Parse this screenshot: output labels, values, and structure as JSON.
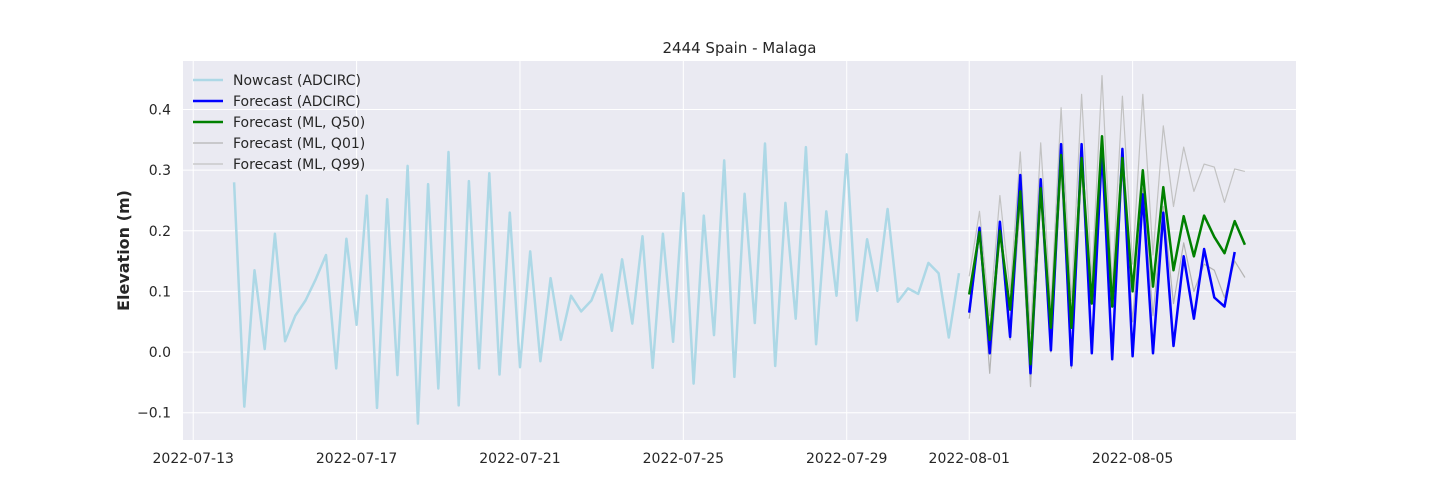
{
  "chart_data": {
    "type": "line",
    "title": "2444 Spain - Malaga",
    "xlabel": "",
    "ylabel": "Elevation (m)",
    "x_axis": "date",
    "xlim": [
      "2022-07-12T18:00",
      "2022-08-09T00:00"
    ],
    "ylim": [
      -0.145,
      0.48
    ],
    "x_ticks": [
      "2022-07-13",
      "2022-07-17",
      "2022-07-21",
      "2022-07-25",
      "2022-07-29",
      "2022-08-01",
      "2022-08-05"
    ],
    "y_ticks": [
      -0.1,
      0.0,
      0.1,
      0.2,
      0.3,
      0.4
    ],
    "y_tick_labels": [
      "−0.1",
      "0.0",
      "0.1",
      "0.2",
      "0.3",
      "0.4"
    ],
    "grid": true,
    "legend_position": "top-left",
    "colors": {
      "background": "#eaeaf2",
      "grid": "#ffffff",
      "nowcast": "#add8e6",
      "forecast_adcirc": "#0000ff",
      "forecast_q50": "#008000",
      "forecast_q01": "#b4b4b4",
      "forecast_q99": "#c2c2c2"
    },
    "series": [
      {
        "name": "Nowcast (ADCIRC)",
        "key": "nowcast",
        "x": [
          "2022-07-14T00:00",
          "2022-07-14T06:00",
          "2022-07-14T12:00",
          "2022-07-14T18:00",
          "2022-07-15T00:00",
          "2022-07-15T06:00",
          "2022-07-15T12:00",
          "2022-07-15T18:00",
          "2022-07-16T00:00",
          "2022-07-16T06:00",
          "2022-07-16T12:00",
          "2022-07-16T18:00",
          "2022-07-17T00:00",
          "2022-07-17T06:00",
          "2022-07-17T12:00",
          "2022-07-17T18:00",
          "2022-07-18T00:00",
          "2022-07-18T06:00",
          "2022-07-18T12:00",
          "2022-07-18T18:00",
          "2022-07-19T00:00",
          "2022-07-19T06:00",
          "2022-07-19T12:00",
          "2022-07-19T18:00",
          "2022-07-20T00:00",
          "2022-07-20T06:00",
          "2022-07-20T12:00",
          "2022-07-20T18:00",
          "2022-07-21T00:00",
          "2022-07-21T06:00",
          "2022-07-21T12:00",
          "2022-07-21T18:00",
          "2022-07-22T00:00",
          "2022-07-22T06:00",
          "2022-07-22T12:00",
          "2022-07-22T18:00",
          "2022-07-23T00:00",
          "2022-07-23T06:00",
          "2022-07-23T12:00",
          "2022-07-23T18:00",
          "2022-07-24T00:00",
          "2022-07-24T06:00",
          "2022-07-24T12:00",
          "2022-07-24T18:00",
          "2022-07-25T00:00",
          "2022-07-25T06:00",
          "2022-07-25T12:00",
          "2022-07-25T18:00",
          "2022-07-26T00:00",
          "2022-07-26T06:00",
          "2022-07-26T12:00",
          "2022-07-26T18:00",
          "2022-07-27T00:00",
          "2022-07-27T06:00",
          "2022-07-27T12:00",
          "2022-07-27T18:00",
          "2022-07-28T00:00",
          "2022-07-28T06:00",
          "2022-07-28T12:00",
          "2022-07-28T18:00",
          "2022-07-29T00:00",
          "2022-07-29T06:00",
          "2022-07-29T12:00",
          "2022-07-29T18:00",
          "2022-07-30T00:00",
          "2022-07-30T06:00",
          "2022-07-30T12:00",
          "2022-07-30T18:00",
          "2022-07-31T00:00",
          "2022-07-31T06:00",
          "2022-07-31T12:00",
          "2022-07-31T18:00"
        ],
        "y": [
          0.28,
          -0.09,
          0.135,
          0.005,
          0.195,
          0.018,
          0.06,
          0.085,
          0.12,
          0.16,
          -0.027,
          0.187,
          0.045,
          0.258,
          -0.092,
          0.252,
          -0.038,
          0.307,
          -0.118,
          0.277,
          -0.06,
          0.33,
          -0.088,
          0.282,
          -0.027,
          0.295,
          -0.037,
          0.23,
          -0.025,
          0.166,
          -0.015,
          0.122,
          0.02,
          0.093,
          0.067,
          0.085,
          0.128,
          0.035,
          0.153,
          0.047,
          0.191,
          -0.026,
          0.195,
          0.017,
          0.262,
          -0.052,
          0.225,
          0.028,
          0.316,
          -0.041,
          0.261,
          0.048,
          0.344,
          -0.023,
          0.246,
          0.055,
          0.338,
          0.013,
          0.232,
          0.093,
          0.326,
          0.052,
          0.186,
          0.101,
          0.236,
          0.083,
          0.105,
          0.096,
          0.147,
          0.13,
          0.024,
          0.13
        ]
      },
      {
        "name": "Forecast (ADCIRC)",
        "key": "forecast_adcirc",
        "x": [
          "2022-08-01T00:00",
          "2022-08-01T06:00",
          "2022-08-01T12:00",
          "2022-08-01T18:00",
          "2022-08-02T00:00",
          "2022-08-02T06:00",
          "2022-08-02T12:00",
          "2022-08-02T18:00",
          "2022-08-03T00:00",
          "2022-08-03T06:00",
          "2022-08-03T12:00",
          "2022-08-03T18:00",
          "2022-08-04T00:00",
          "2022-08-04T06:00",
          "2022-08-04T12:00",
          "2022-08-04T18:00",
          "2022-08-05T00:00",
          "2022-08-05T06:00",
          "2022-08-05T12:00",
          "2022-08-05T18:00",
          "2022-08-06T00:00",
          "2022-08-06T06:00",
          "2022-08-06T12:00",
          "2022-08-06T18:00",
          "2022-08-07T00:00",
          "2022-08-07T06:00",
          "2022-08-07T12:00"
        ],
        "y": [
          0.065,
          0.205,
          -0.002,
          0.215,
          0.025,
          0.292,
          -0.035,
          0.285,
          0.003,
          0.343,
          -0.022,
          0.343,
          -0.002,
          0.335,
          -0.012,
          0.335,
          -0.007,
          0.26,
          -0.002,
          0.23,
          0.01,
          0.158,
          0.055,
          0.17,
          0.09,
          0.075,
          0.165
        ]
      },
      {
        "name": "Forecast (ML, Q50)",
        "key": "forecast_q50",
        "x": [
          "2022-08-01T00:00",
          "2022-08-01T06:00",
          "2022-08-01T12:00",
          "2022-08-01T18:00",
          "2022-08-02T00:00",
          "2022-08-02T06:00",
          "2022-08-02T12:00",
          "2022-08-02T18:00",
          "2022-08-03T00:00",
          "2022-08-03T06:00",
          "2022-08-03T12:00",
          "2022-08-03T18:00",
          "2022-08-04T00:00",
          "2022-08-04T06:00",
          "2022-08-04T12:00",
          "2022-08-04T18:00",
          "2022-08-05T00:00",
          "2022-08-05T06:00",
          "2022-08-05T12:00",
          "2022-08-05T18:00",
          "2022-08-06T00:00",
          "2022-08-06T06:00",
          "2022-08-06T12:00",
          "2022-08-06T18:00",
          "2022-08-07T00:00",
          "2022-08-07T06:00",
          "2022-08-07T12:00",
          "2022-08-07T18:00"
        ],
        "y": [
          0.095,
          0.198,
          0.02,
          0.2,
          0.07,
          0.265,
          -0.02,
          0.27,
          0.04,
          0.325,
          0.04,
          0.32,
          0.08,
          0.356,
          0.075,
          0.32,
          0.1,
          0.3,
          0.108,
          0.272,
          0.135,
          0.224,
          0.158,
          0.225,
          0.19,
          0.163,
          0.216,
          0.177
        ]
      },
      {
        "name": "Forecast (ML, Q01)",
        "key": "forecast_q01",
        "x": [
          "2022-08-01T00:00",
          "2022-08-01T06:00",
          "2022-08-01T12:00",
          "2022-08-01T18:00",
          "2022-08-02T00:00",
          "2022-08-02T06:00",
          "2022-08-02T12:00",
          "2022-08-02T18:00",
          "2022-08-03T00:00",
          "2022-08-03T06:00",
          "2022-08-03T12:00",
          "2022-08-03T18:00",
          "2022-08-04T00:00",
          "2022-08-04T06:00",
          "2022-08-04T12:00",
          "2022-08-04T18:00",
          "2022-08-05T00:00",
          "2022-08-05T06:00",
          "2022-08-05T12:00",
          "2022-08-05T18:00",
          "2022-08-06T00:00",
          "2022-08-06T06:00",
          "2022-08-06T12:00",
          "2022-08-06T18:00",
          "2022-08-07T00:00",
          "2022-08-07T06:00",
          "2022-08-07T12:00",
          "2022-08-07T18:00"
        ],
        "y": [
          0.055,
          0.2,
          -0.035,
          0.2,
          0.02,
          0.245,
          -0.057,
          0.255,
          0.0,
          0.305,
          -0.027,
          0.3,
          0.015,
          0.33,
          0.01,
          0.3,
          0.05,
          0.27,
          0.06,
          0.24,
          0.08,
          0.18,
          0.1,
          0.145,
          0.135,
          0.09,
          0.15,
          0.123
        ]
      },
      {
        "name": "Forecast (ML, Q99)",
        "key": "forecast_q99",
        "x": [
          "2022-08-01T00:00",
          "2022-08-01T06:00",
          "2022-08-01T12:00",
          "2022-08-01T18:00",
          "2022-08-02T00:00",
          "2022-08-02T06:00",
          "2022-08-02T12:00",
          "2022-08-02T18:00",
          "2022-08-03T00:00",
          "2022-08-03T06:00",
          "2022-08-03T12:00",
          "2022-08-03T18:00",
          "2022-08-04T00:00",
          "2022-08-04T06:00",
          "2022-08-04T12:00",
          "2022-08-04T18:00",
          "2022-08-05T00:00",
          "2022-08-05T06:00",
          "2022-08-05T12:00",
          "2022-08-05T18:00",
          "2022-08-06T00:00",
          "2022-08-06T06:00",
          "2022-08-06T12:00",
          "2022-08-06T18:00",
          "2022-08-07T00:00",
          "2022-08-07T06:00",
          "2022-08-07T12:00",
          "2022-08-07T18:00"
        ],
        "y": [
          0.125,
          0.232,
          0.06,
          0.258,
          0.1,
          0.33,
          0.03,
          0.345,
          0.075,
          0.403,
          0.085,
          0.425,
          0.12,
          0.456,
          0.11,
          0.422,
          0.145,
          0.425,
          0.16,
          0.373,
          0.24,
          0.338,
          0.265,
          0.31,
          0.305,
          0.247,
          0.302,
          0.298
        ]
      }
    ]
  }
}
